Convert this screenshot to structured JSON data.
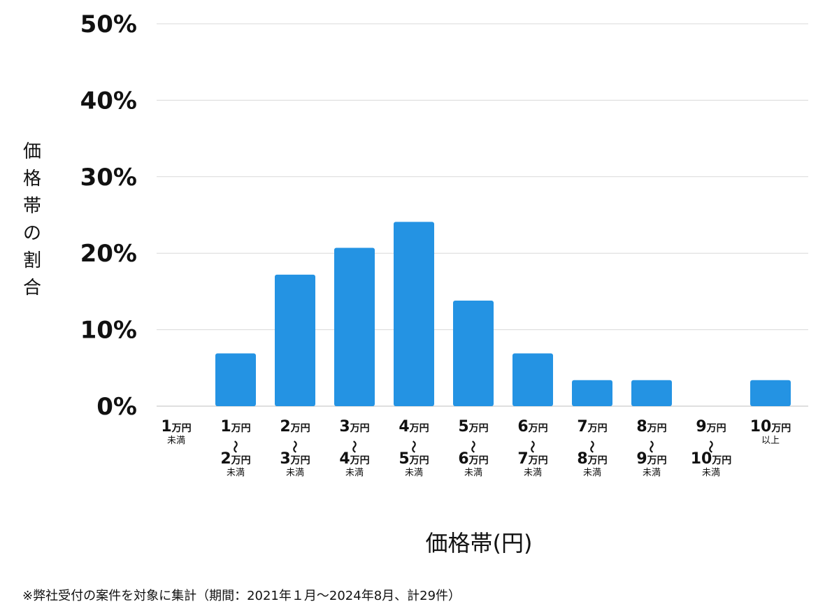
{
  "chart_data": {
    "type": "bar",
    "categories": [
      {
        "lines": [
          {
            "main": "1",
            "unit": "万円"
          },
          {
            "small": "未満"
          }
        ]
      },
      {
        "lines": [
          {
            "main": "1",
            "unit": "万円"
          },
          {
            "tilde": "〜"
          },
          {
            "main": "2",
            "unit": "万円"
          },
          {
            "small": "未満"
          }
        ]
      },
      {
        "lines": [
          {
            "main": "2",
            "unit": "万円"
          },
          {
            "tilde": "〜"
          },
          {
            "main": "3",
            "unit": "万円"
          },
          {
            "small": "未満"
          }
        ]
      },
      {
        "lines": [
          {
            "main": "3",
            "unit": "万円"
          },
          {
            "tilde": "〜"
          },
          {
            "main": "4",
            "unit": "万円"
          },
          {
            "small": "未満"
          }
        ]
      },
      {
        "lines": [
          {
            "main": "4",
            "unit": "万円"
          },
          {
            "tilde": "〜"
          },
          {
            "main": "5",
            "unit": "万円"
          },
          {
            "small": "未満"
          }
        ]
      },
      {
        "lines": [
          {
            "main": "5",
            "unit": "万円"
          },
          {
            "tilde": "〜"
          },
          {
            "main": "6",
            "unit": "万円"
          },
          {
            "small": "未満"
          }
        ]
      },
      {
        "lines": [
          {
            "main": "6",
            "unit": "万円"
          },
          {
            "tilde": "〜"
          },
          {
            "main": "7",
            "unit": "万円"
          },
          {
            "small": "未満"
          }
        ]
      },
      {
        "lines": [
          {
            "main": "7",
            "unit": "万円"
          },
          {
            "tilde": "〜"
          },
          {
            "main": "8",
            "unit": "万円"
          },
          {
            "small": "未満"
          }
        ]
      },
      {
        "lines": [
          {
            "main": "8",
            "unit": "万円"
          },
          {
            "tilde": "〜"
          },
          {
            "main": "9",
            "unit": "万円"
          },
          {
            "small": "未満"
          }
        ]
      },
      {
        "lines": [
          {
            "main": "9",
            "unit": "万円"
          },
          {
            "tilde": "〜"
          },
          {
            "main": "10",
            "unit": "万円"
          },
          {
            "small": "未満"
          }
        ]
      },
      {
        "lines": [
          {
            "main": "10",
            "unit": "万円"
          },
          {
            "small": "以上"
          }
        ]
      }
    ],
    "values": [
      0,
      6.9,
      17.2,
      20.7,
      24.1,
      13.8,
      6.9,
      3.4,
      3.4,
      0,
      3.4
    ],
    "ylim": [
      0,
      50
    ],
    "yticks": [
      0,
      10,
      20,
      30,
      40,
      50
    ],
    "ytick_labels": [
      "0%",
      "10%",
      "20%",
      "30%",
      "40%",
      "50%"
    ],
    "ylabel": "価\n格\n帯\nの\n割\n合",
    "xlabel": "価格帯(円)",
    "grid": true,
    "bar_color": "#2493e3",
    "grid_color": "#d9d9d9"
  },
  "footnote": "※弊社受付の案件を対象に集計（期間：2021年１月〜2024年8月、計29件）"
}
